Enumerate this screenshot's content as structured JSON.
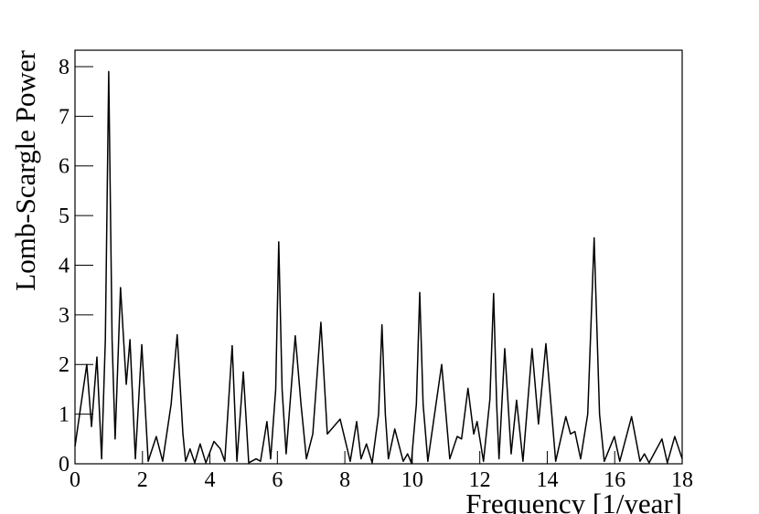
{
  "chart_data": {
    "type": "line",
    "x_label": "Frequency [1/year]",
    "y_label": "Lomb-Scargle Power",
    "xlim": [
      0,
      18
    ],
    "xticks": [
      0,
      2,
      4,
      6,
      8,
      10,
      12,
      14,
      16,
      18
    ],
    "ylim": [
      0,
      8.33
    ],
    "yticks": [
      0,
      1,
      2,
      3,
      4,
      5,
      6,
      7,
      8
    ],
    "color": "#000000",
    "x": [
      0,
      0.35,
      0.49,
      0.65,
      0.79,
      0.9,
      1.0,
      1.1,
      1.19,
      1.35,
      1.52,
      1.63,
      1.79,
      1.98,
      2.17,
      2.41,
      2.6,
      2.85,
      3.03,
      3.2,
      3.28,
      3.41,
      3.55,
      3.71,
      3.88,
      4.12,
      4.31,
      4.44,
      4.66,
      4.8,
      4.99,
      5.15,
      5.37,
      5.5,
      5.69,
      5.8,
      5.95,
      6.04,
      6.14,
      6.26,
      6.53,
      6.7,
      6.86,
      7.05,
      7.29,
      7.48,
      7.86,
      8.16,
      8.35,
      8.48,
      8.64,
      8.81,
      9.0,
      9.1,
      9.2,
      9.29,
      9.48,
      9.73,
      9.86,
      9.97,
      10.12,
      10.22,
      10.32,
      10.46,
      10.87,
      11.11,
      11.33,
      11.46,
      11.65,
      11.82,
      11.92,
      12.11,
      12.3,
      12.41,
      12.5,
      12.57,
      12.74,
      12.93,
      13.09,
      13.28,
      13.55,
      13.74,
      13.96,
      14.25,
      14.55,
      14.69,
      14.82,
      14.99,
      15.2,
      15.39,
      15.55,
      15.69,
      15.99,
      16.15,
      16.5,
      16.75,
      16.88,
      17.02,
      17.4,
      17.56,
      17.78,
      18
    ],
    "values": [
      0.35,
      2.0,
      0.75,
      2.15,
      0.1,
      2.5,
      7.9,
      2.5,
      0.5,
      3.55,
      1.6,
      2.5,
      0.1,
      2.4,
      0.05,
      0.55,
      0.05,
      1.2,
      2.6,
      0.6,
      0.05,
      0.3,
      0.02,
      0.4,
      0.02,
      0.45,
      0.3,
      0.05,
      2.38,
      0.05,
      1.85,
      0.02,
      0.1,
      0.05,
      0.85,
      0.1,
      1.5,
      4.47,
      1.5,
      0.2,
      2.58,
      1.2,
      0.1,
      0.6,
      2.85,
      0.6,
      0.9,
      0.05,
      0.85,
      0.1,
      0.4,
      0.02,
      1.0,
      2.8,
      1.0,
      0.1,
      0.7,
      0.05,
      0.2,
      0.02,
      1.2,
      3.45,
      1.2,
      0.05,
      2.0,
      0.1,
      0.55,
      0.5,
      1.52,
      0.6,
      0.85,
      0.05,
      1.3,
      3.43,
      1.2,
      0.1,
      2.32,
      0.2,
      1.28,
      0.05,
      2.32,
      0.8,
      2.42,
      0.05,
      0.95,
      0.6,
      0.65,
      0.1,
      1.0,
      4.55,
      1.0,
      0.05,
      0.55,
      0.05,
      0.95,
      0.05,
      0.2,
      0.02,
      0.5,
      0.02,
      0.55,
      0.1
    ]
  }
}
